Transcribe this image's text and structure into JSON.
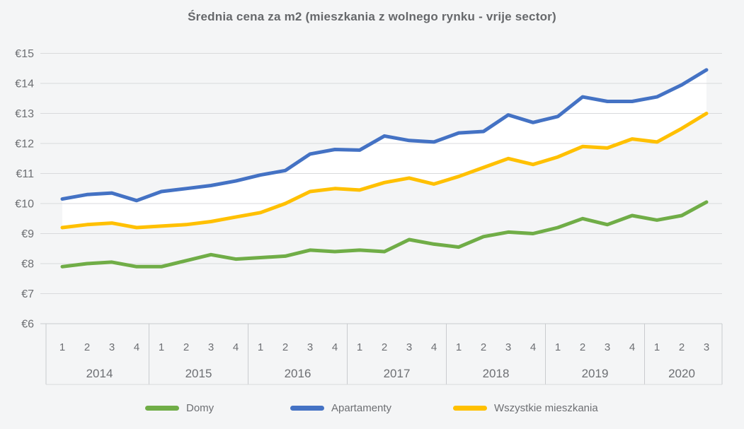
{
  "title": "Średnia cena za m2 (mieszkania z wolnego rynku - vrije sector)",
  "colors": {
    "background": "#f4f5f6",
    "gridline": "#d9dadc",
    "axis_line": "#c9cbce",
    "text_muted": "#6d6f73",
    "title_text": "#66686b",
    "band_white": "#ffffff"
  },
  "chart_data": {
    "type": "line",
    "title": "Średnia cena za m2 (mieszkania z wolnego rynku - vrije sector)",
    "ylabel": "",
    "xlabel": "",
    "currency_prefix": "€",
    "ylim": [
      6,
      15
    ],
    "y_ticks": [
      "€6",
      "€7",
      "€8",
      "€9",
      "€10",
      "€11",
      "€12",
      "€13",
      "€14",
      "€15"
    ],
    "grid": true,
    "legend_position": "bottom",
    "x_groups": [
      {
        "year": "2014",
        "quarters": [
          "1",
          "2",
          "3",
          "4"
        ]
      },
      {
        "year": "2015",
        "quarters": [
          "1",
          "2",
          "3",
          "4"
        ]
      },
      {
        "year": "2016",
        "quarters": [
          "1",
          "2",
          "3",
          "4"
        ]
      },
      {
        "year": "2017",
        "quarters": [
          "1",
          "2",
          "3",
          "4"
        ]
      },
      {
        "year": "2018",
        "quarters": [
          "1",
          "2",
          "3",
          "4"
        ]
      },
      {
        "year": "2019",
        "quarters": [
          "1",
          "2",
          "3",
          "4"
        ]
      },
      {
        "year": "2020",
        "quarters": [
          "1",
          "2",
          "3"
        ]
      }
    ],
    "series": [
      {
        "name": "Domy",
        "color": "#70AD47",
        "area_fill": null,
        "values": [
          7.9,
          8.0,
          8.05,
          7.9,
          7.9,
          8.1,
          8.3,
          8.15,
          8.2,
          8.25,
          8.45,
          8.4,
          8.45,
          8.4,
          8.8,
          8.65,
          8.55,
          8.9,
          9.05,
          9.0,
          9.2,
          9.5,
          9.3,
          9.6,
          9.45,
          9.6,
          10.05
        ]
      },
      {
        "name": "Apartamenty",
        "color": "#4472C4",
        "area_fill": "#ffffff",
        "values": [
          10.15,
          10.3,
          10.35,
          10.1,
          10.4,
          10.5,
          10.6,
          10.75,
          10.95,
          11.1,
          11.65,
          11.8,
          11.78,
          12.25,
          12.1,
          12.05,
          12.35,
          12.4,
          12.95,
          12.7,
          12.9,
          13.55,
          13.4,
          13.4,
          13.55,
          13.95,
          14.45
        ]
      },
      {
        "name": "Wszystkie mieszkania",
        "color": "#FFC000",
        "area_fill": "#f4f5f6",
        "values": [
          9.2,
          9.3,
          9.35,
          9.2,
          9.25,
          9.3,
          9.4,
          9.55,
          9.7,
          10.0,
          10.4,
          10.5,
          10.45,
          10.7,
          10.85,
          10.65,
          10.9,
          11.2,
          11.5,
          11.3,
          11.55,
          11.9,
          11.85,
          12.15,
          12.05,
          12.5,
          13.0
        ]
      }
    ]
  },
  "legend": {
    "items": [
      {
        "label": "Domy"
      },
      {
        "label": "Apartamenty"
      },
      {
        "label": "Wszystkie mieszkania"
      }
    ]
  }
}
